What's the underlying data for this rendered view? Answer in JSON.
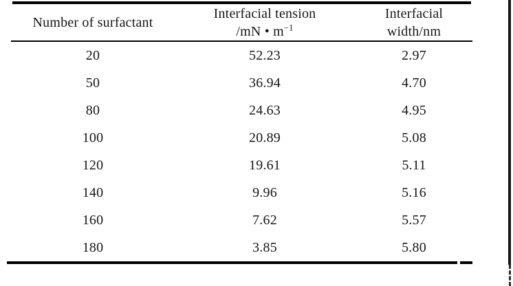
{
  "colors": {
    "rule": "#000000",
    "text": "#161616",
    "background": "#ffffff"
  },
  "table": {
    "headers": {
      "col1": "Number of surfactant",
      "col2_line1": "Interfacial tension",
      "col2_unit_base": "/mN • m",
      "col2_unit_sup": "−1",
      "col3_line1": "Interfacial",
      "col3_line2": "width/nm"
    },
    "rows": [
      {
        "surfactant": "20",
        "tension": "52.23",
        "width": "2.97"
      },
      {
        "surfactant": "50",
        "tension": "36.94",
        "width": "4.70"
      },
      {
        "surfactant": "80",
        "tension": "24.63",
        "width": "4.95"
      },
      {
        "surfactant": "100",
        "tension": "20.89",
        "width": "5.08"
      },
      {
        "surfactant": "120",
        "tension": "19.61",
        "width": "5.11"
      },
      {
        "surfactant": "140",
        "tension": "9.96",
        "width": "5.16"
      },
      {
        "surfactant": "160",
        "tension": "7.62",
        "width": "5.57"
      },
      {
        "surfactant": "180",
        "tension": "3.85",
        "width": "5.80"
      }
    ]
  }
}
